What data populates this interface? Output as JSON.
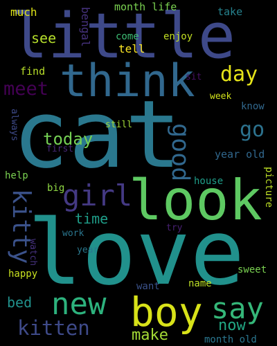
{
  "words": [
    {
      "id": "little",
      "text": "little",
      "color": "#3e4989"
    },
    {
      "id": "cat",
      "text": "cat",
      "color": "#2a788e"
    },
    {
      "id": "love",
      "text": "love",
      "color": "#21918c"
    },
    {
      "id": "look",
      "text": "look",
      "color": "#5ec962"
    },
    {
      "id": "think",
      "text": "think",
      "color": "#31688e"
    },
    {
      "id": "boy",
      "text": "boy",
      "color": "#d8e219"
    },
    {
      "id": "new",
      "text": "new",
      "color": "#2db27d"
    },
    {
      "id": "say",
      "text": "say",
      "color": "#35b779"
    },
    {
      "id": "girl",
      "text": "girl",
      "color": "#443983"
    },
    {
      "id": "kitty",
      "text": "kitty",
      "color": "#3b528b"
    },
    {
      "id": "kitten",
      "text": "kitten",
      "color": "#3e4a89"
    },
    {
      "id": "meet",
      "text": "meet",
      "color": "#440154"
    },
    {
      "id": "day",
      "text": "day",
      "color": "#e5e419"
    },
    {
      "id": "good",
      "text": "good",
      "color": "#31688e"
    },
    {
      "id": "go",
      "text": "go",
      "color": "#2c728e"
    },
    {
      "id": "today",
      "text": "today",
      "color": "#75d054"
    },
    {
      "id": "time",
      "text": "time",
      "color": "#1f9e89"
    },
    {
      "id": "make",
      "text": "make",
      "color": "#a5db36"
    },
    {
      "id": "now",
      "text": "now",
      "color": "#22a884"
    },
    {
      "id": "bed",
      "text": "bed",
      "color": "#21918c"
    },
    {
      "id": "see",
      "text": "see",
      "color": "#b5de2b"
    },
    {
      "id": "much",
      "text": "much",
      "color": "#dde318"
    },
    {
      "id": "bengal",
      "text": "bengal",
      "color": "#46327e"
    },
    {
      "id": "month-life",
      "text": "month life",
      "color": "#7ad151"
    },
    {
      "id": "take",
      "text": "take",
      "color": "#26828e"
    },
    {
      "id": "come",
      "text": "come",
      "color": "#3dbc74"
    },
    {
      "id": "enjoy",
      "text": "enjoy",
      "color": "#c2df23"
    },
    {
      "id": "tell",
      "text": "tell",
      "color": "#fde725"
    },
    {
      "id": "find",
      "text": "find",
      "color": "#b8de29"
    },
    {
      "id": "sit",
      "text": "sit",
      "color": "#471164"
    },
    {
      "id": "week",
      "text": "week",
      "color": "#d2e21b"
    },
    {
      "id": "know",
      "text": "know",
      "color": "#31688e"
    },
    {
      "id": "always",
      "text": "always",
      "color": "#3e4a89"
    },
    {
      "id": "still",
      "text": "still",
      "color": "#a2da37"
    },
    {
      "id": "first",
      "text": "first",
      "color": "#482878"
    },
    {
      "id": "year-old",
      "text": "year old",
      "color": "#31688e"
    },
    {
      "id": "help",
      "text": "help",
      "color": "#7ad151"
    },
    {
      "id": "big",
      "text": "big",
      "color": "#8fd744"
    },
    {
      "id": "house",
      "text": "house",
      "color": "#1f9e89"
    },
    {
      "id": "picture",
      "text": "picture",
      "color": "#bddf26"
    },
    {
      "id": "work",
      "text": "work",
      "color": "#2a768e"
    },
    {
      "id": "try",
      "text": "try",
      "color": "#482173"
    },
    {
      "id": "watch",
      "text": "watch",
      "color": "#46327e"
    },
    {
      "id": "year",
      "text": "year",
      "color": "#2a788e"
    },
    {
      "id": "happy",
      "text": "happy",
      "color": "#c8e020"
    },
    {
      "id": "sweet",
      "text": "sweet",
      "color": "#7ad151"
    },
    {
      "id": "want",
      "text": "want",
      "color": "#3b528b"
    },
    {
      "id": "name",
      "text": "name",
      "color": "#bddf26"
    },
    {
      "id": "month-old",
      "text": "month old",
      "color": "#2a768e"
    }
  ]
}
